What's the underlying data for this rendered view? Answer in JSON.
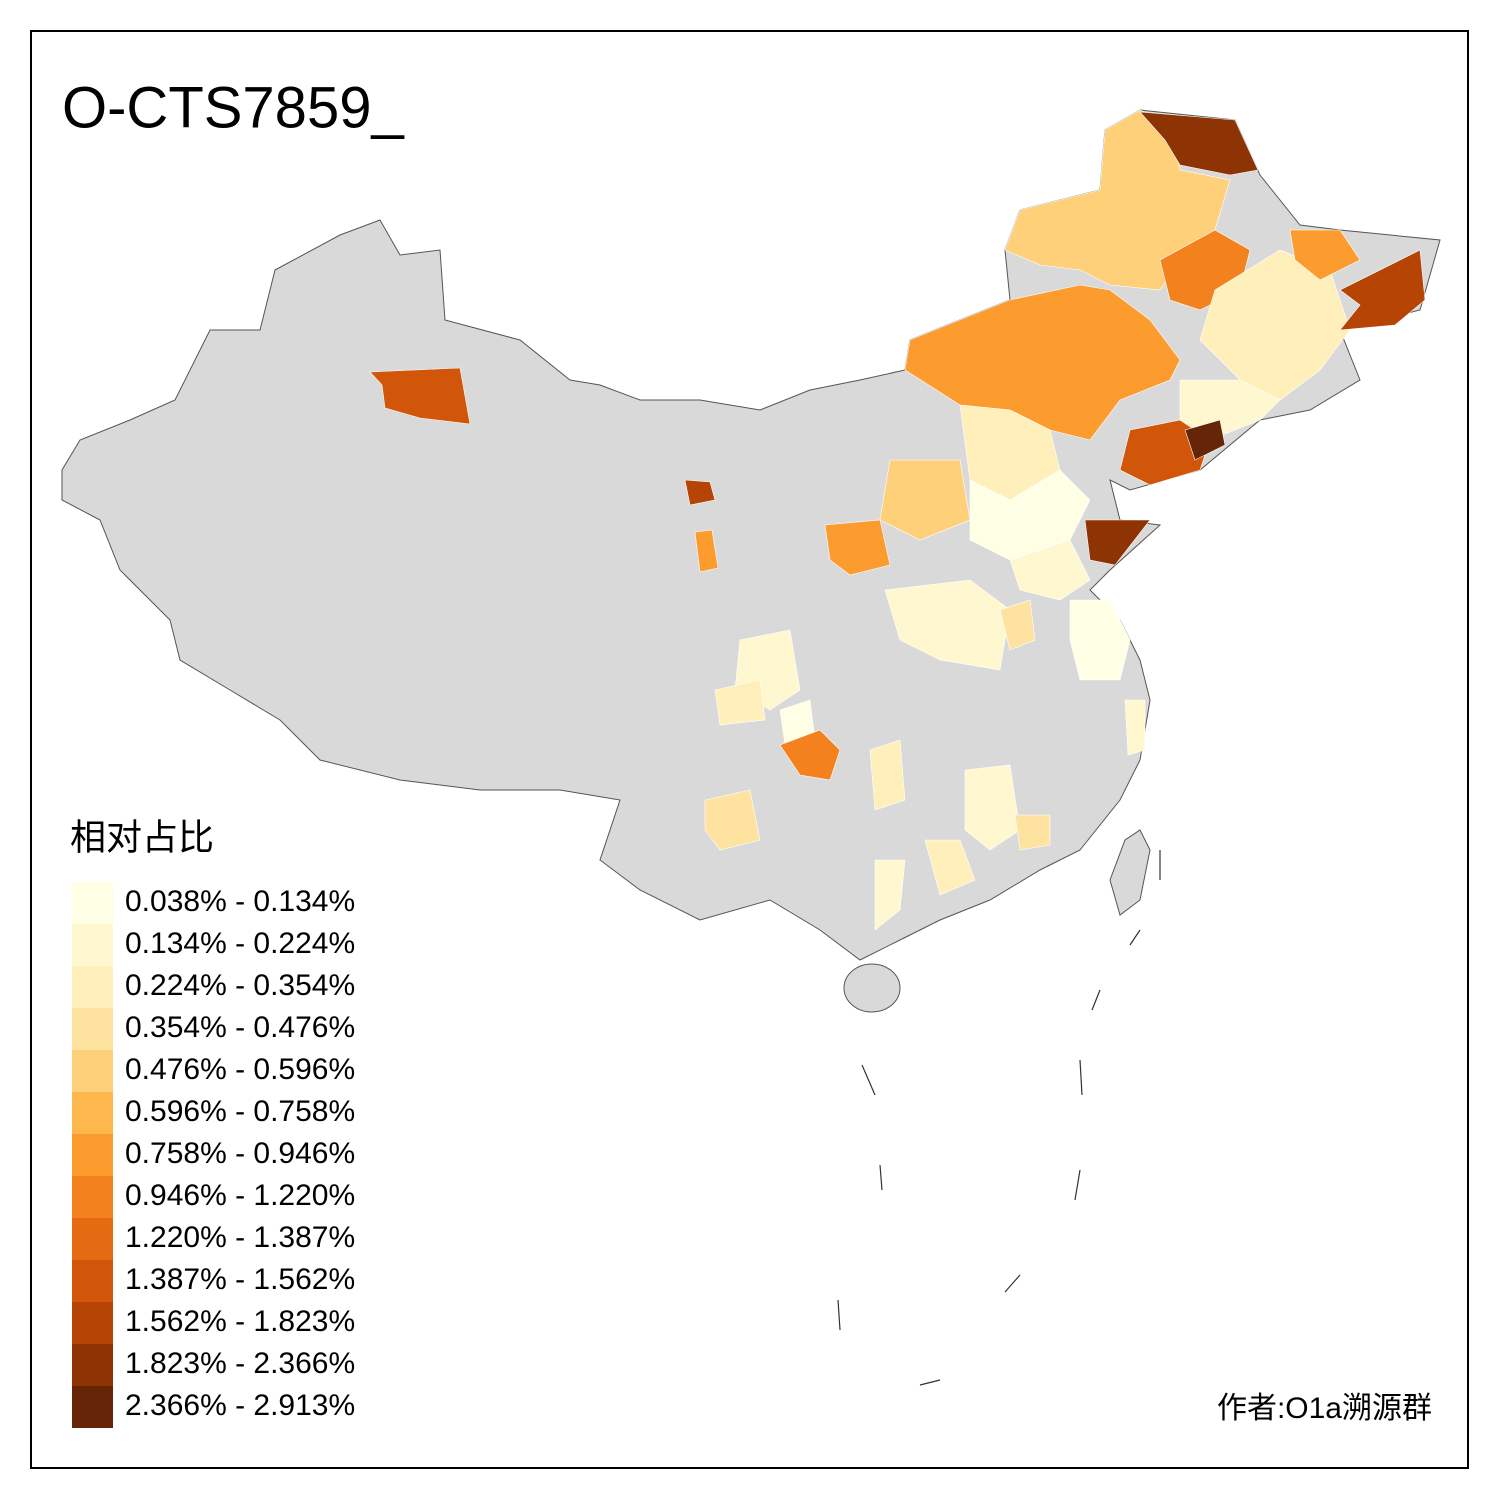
{
  "title": "O-CTS7859_",
  "legend": {
    "title": "相对占比",
    "items": [
      {
        "label": "0.038% - 0.134%",
        "color": "#ffffe5"
      },
      {
        "label": "0.134% - 0.224%",
        "color": "#fff7cf"
      },
      {
        "label": "0.224% - 0.354%",
        "color": "#ffefbb"
      },
      {
        "label": "0.354% - 0.476%",
        "color": "#fee3a0"
      },
      {
        "label": "0.476% - 0.596%",
        "color": "#fed07a"
      },
      {
        "label": "0.596% - 0.758%",
        "color": "#feb74c"
      },
      {
        "label": "0.758% - 0.946%",
        "color": "#fc9c2e"
      },
      {
        "label": "0.946% - 1.220%",
        "color": "#f3821e"
      },
      {
        "label": "1.220% - 1.387%",
        "color": "#e46b12"
      },
      {
        "label": "1.387% - 1.562%",
        "color": "#d2560a"
      },
      {
        "label": "1.562% - 1.823%",
        "color": "#b54405"
      },
      {
        "label": "1.823% - 2.366%",
        "color": "#8e3304"
      },
      {
        "label": "2.366% - 2.913%",
        "color": "#662506"
      }
    ]
  },
  "credit": "作者:O1a溯源群"
}
